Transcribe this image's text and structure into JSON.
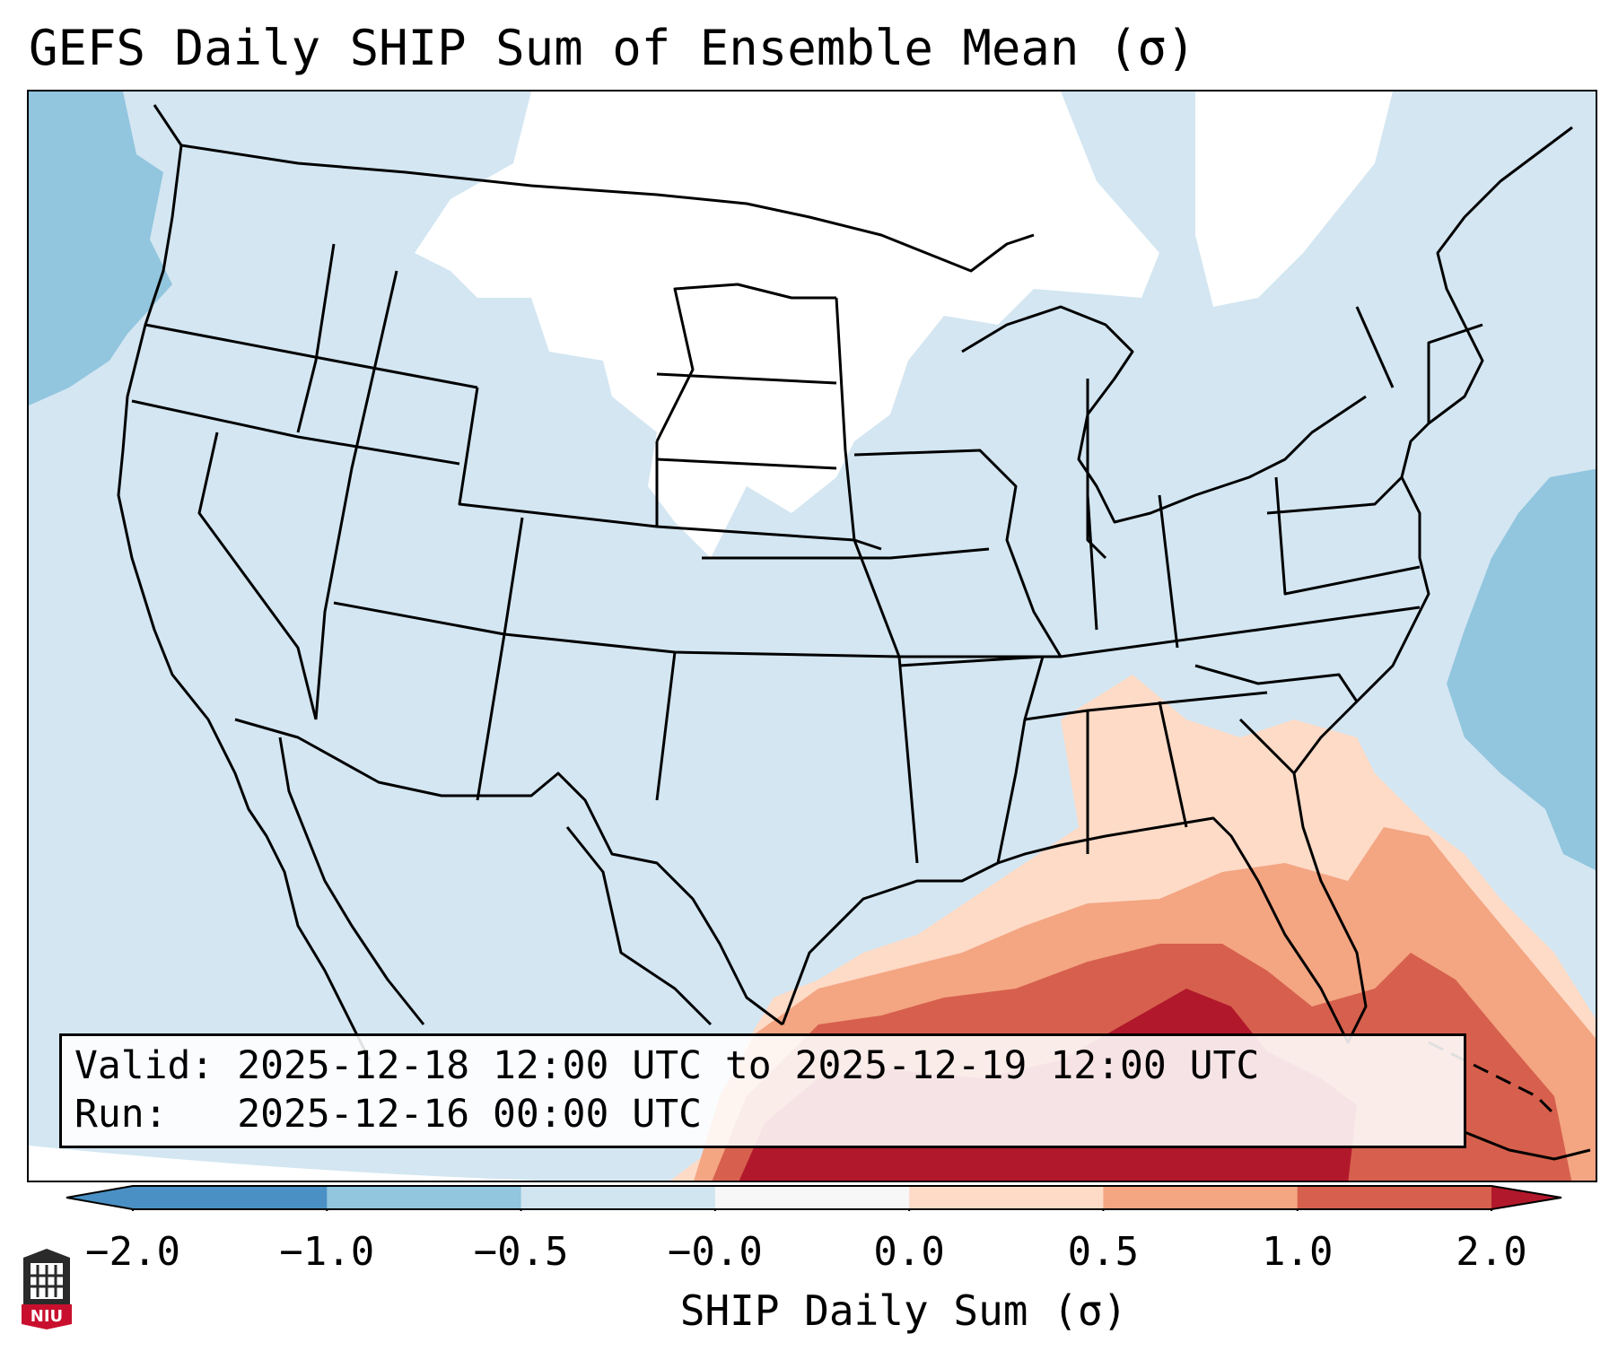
{
  "title": "GEFS Daily SHIP Sum of Ensemble Mean (σ)",
  "info": {
    "valid_label": "Valid:",
    "valid_value": "2025-12-18 12:00 UTC to 2025-12-19 12:00 UTC",
    "run_label": "Run:",
    "run_value": "2025-12-16 00:00 UTC"
  },
  "colorbar": {
    "label": "SHIP Daily Sum (σ)",
    "ticks": [
      "−2.0",
      "−1.0",
      "−0.5",
      "−0.0",
      "0.0",
      "0.5",
      "1.0",
      "2.0"
    ],
    "colors": [
      "#4a90c4",
      "#92c5de",
      "#d1e5f0",
      "#f7f7f7",
      "#fddbc7",
      "#f4a582",
      "#d6604d",
      "#b2182b"
    ]
  },
  "logo_text": "NIU"
}
